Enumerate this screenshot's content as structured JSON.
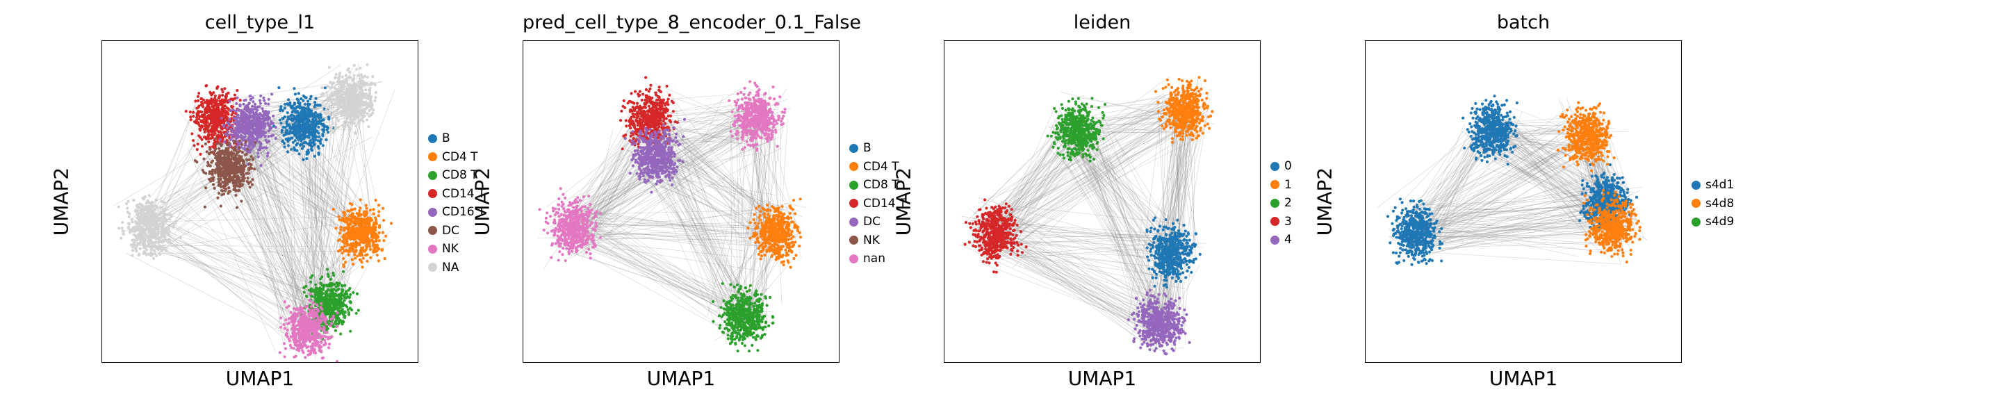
{
  "figure": {
    "panels": [
      {
        "title": "cell_type_l1",
        "xlabel": "UMAP1",
        "ylabel": "UMAP2",
        "legend": [
          {
            "label": "B",
            "color": "#1f77b4"
          },
          {
            "label": "CD4 T",
            "color": "#ff7f0e"
          },
          {
            "label": "CD8 T",
            "color": "#2ca02c"
          },
          {
            "label": "CD14 T",
            "color": "#d62728"
          },
          {
            "label": "CD16 T",
            "color": "#9467bd"
          },
          {
            "label": "DC",
            "color": "#8c564b"
          },
          {
            "label": "NK",
            "color": "#e377c2"
          },
          {
            "label": "NA",
            "color": "#d3d3d3"
          }
        ]
      },
      {
        "title": "pred_cell_type_8_encoder_0.1_False",
        "xlabel": "UMAP1",
        "ylabel": "UMAP2",
        "legend": [
          {
            "label": "B",
            "color": "#1f77b4"
          },
          {
            "label": "CD4 T",
            "color": "#ff7f0e"
          },
          {
            "label": "CD8 T",
            "color": "#2ca02c"
          },
          {
            "label": "CD14 T",
            "color": "#d62728"
          },
          {
            "label": "DC",
            "color": "#9467bd"
          },
          {
            "label": "NK",
            "color": "#8c564b"
          },
          {
            "label": "nan",
            "color": "#e377c2"
          }
        ]
      },
      {
        "title": "leiden",
        "xlabel": "UMAP1",
        "ylabel": "UMAP2",
        "legend": [
          {
            "label": "0",
            "color": "#1f77b4"
          },
          {
            "label": "1",
            "color": "#ff7f0e"
          },
          {
            "label": "2",
            "color": "#2ca02c"
          },
          {
            "label": "3",
            "color": "#d62728"
          },
          {
            "label": "4",
            "color": "#9467bd"
          }
        ]
      },
      {
        "title": "batch",
        "xlabel": "UMAP1",
        "ylabel": "UMAP2",
        "legend": [
          {
            "label": "s4d1",
            "color": "#1f77b4"
          },
          {
            "label": "s4d8",
            "color": "#ff7f0e"
          },
          {
            "label": "s4d9",
            "color": "#2ca02c"
          }
        ]
      }
    ]
  },
  "chart_data": [
    {
      "type": "scatter",
      "title": "cell_type_l1",
      "xlabel": "UMAP1",
      "ylabel": "UMAP2",
      "grid": false,
      "ticks": false,
      "legend_position": "right",
      "edges_drawn": true,
      "edge_color": "#808080",
      "series": [
        {
          "name": "B",
          "color": "#1f77b4",
          "clusters": [
            {
              "x": 0.64,
              "y": 0.74
            }
          ]
        },
        {
          "name": "CD4 T",
          "color": "#ff7f0e",
          "clusters": [
            {
              "x": 0.82,
              "y": 0.4
            }
          ]
        },
        {
          "name": "CD8 T",
          "color": "#2ca02c",
          "clusters": [
            {
              "x": 0.72,
              "y": 0.18
            }
          ]
        },
        {
          "name": "CD14 T",
          "color": "#d62728",
          "clusters": [
            {
              "x": 0.36,
              "y": 0.76
            }
          ]
        },
        {
          "name": "CD16 T",
          "color": "#9467bd",
          "clusters": [
            {
              "x": 0.47,
              "y": 0.73
            }
          ]
        },
        {
          "name": "DC",
          "color": "#8c564b",
          "clusters": [
            {
              "x": 0.4,
              "y": 0.6
            }
          ]
        },
        {
          "name": "NK",
          "color": "#e377c2",
          "clusters": [
            {
              "x": 0.65,
              "y": 0.1
            }
          ]
        },
        {
          "name": "NA",
          "color": "#d3d3d3",
          "clusters": [
            {
              "x": 0.15,
              "y": 0.42
            },
            {
              "x": 0.79,
              "y": 0.82
            }
          ]
        }
      ]
    },
    {
      "type": "scatter",
      "title": "pred_cell_type_8_encoder_0.1_False",
      "xlabel": "UMAP1",
      "ylabel": "UMAP2",
      "grid": false,
      "ticks": false,
      "legend_position": "right",
      "edges_drawn": true,
      "edge_color": "#808080",
      "series": [
        {
          "name": "B",
          "color": "#1f77b4",
          "clusters": []
        },
        {
          "name": "CD4 T",
          "color": "#ff7f0e",
          "clusters": [
            {
              "x": 0.8,
              "y": 0.4
            }
          ]
        },
        {
          "name": "CD8 T",
          "color": "#2ca02c",
          "clusters": [
            {
              "x": 0.7,
              "y": 0.14
            }
          ]
        },
        {
          "name": "CD14 T",
          "color": "#d62728",
          "clusters": [
            {
              "x": 0.4,
              "y": 0.76
            }
          ]
        },
        {
          "name": "DC",
          "color": "#9467bd",
          "clusters": [
            {
              "x": 0.42,
              "y": 0.64
            }
          ]
        },
        {
          "name": "NK",
          "color": "#8c564b",
          "clusters": []
        },
        {
          "name": "nan",
          "color": "#e377c2",
          "clusters": [
            {
              "x": 0.16,
              "y": 0.42
            },
            {
              "x": 0.74,
              "y": 0.76
            }
          ]
        }
      ]
    },
    {
      "type": "scatter",
      "title": "leiden",
      "xlabel": "UMAP1",
      "ylabel": "UMAP2",
      "grid": false,
      "ticks": false,
      "legend_position": "right",
      "edges_drawn": true,
      "edge_color": "#808080",
      "series": [
        {
          "name": "0",
          "color": "#1f77b4",
          "clusters": [
            {
              "x": 0.72,
              "y": 0.34
            }
          ]
        },
        {
          "name": "1",
          "color": "#ff7f0e",
          "clusters": [
            {
              "x": 0.76,
              "y": 0.78
            }
          ]
        },
        {
          "name": "2",
          "color": "#2ca02c",
          "clusters": [
            {
              "x": 0.42,
              "y": 0.72
            }
          ]
        },
        {
          "name": "3",
          "color": "#d62728",
          "clusters": [
            {
              "x": 0.16,
              "y": 0.4
            }
          ]
        },
        {
          "name": "4",
          "color": "#9467bd",
          "clusters": [
            {
              "x": 0.68,
              "y": 0.12
            }
          ]
        }
      ]
    },
    {
      "type": "scatter",
      "title": "batch",
      "xlabel": "UMAP1",
      "ylabel": "UMAP2",
      "grid": false,
      "ticks": false,
      "legend_position": "right",
      "edges_drawn": true,
      "edge_color": "#808080",
      "series": [
        {
          "name": "s4d1",
          "color": "#1f77b4",
          "clusters": [
            {
              "x": 0.4,
              "y": 0.72
            },
            {
              "x": 0.16,
              "y": 0.4
            },
            {
              "x": 0.76,
              "y": 0.5
            }
          ]
        },
        {
          "name": "s4d8",
          "color": "#ff7f0e",
          "clusters": [
            {
              "x": 0.78,
              "y": 0.42
            },
            {
              "x": 0.7,
              "y": 0.7
            }
          ]
        },
        {
          "name": "s4d9",
          "color": "#2ca02c",
          "clusters": []
        }
      ]
    }
  ]
}
